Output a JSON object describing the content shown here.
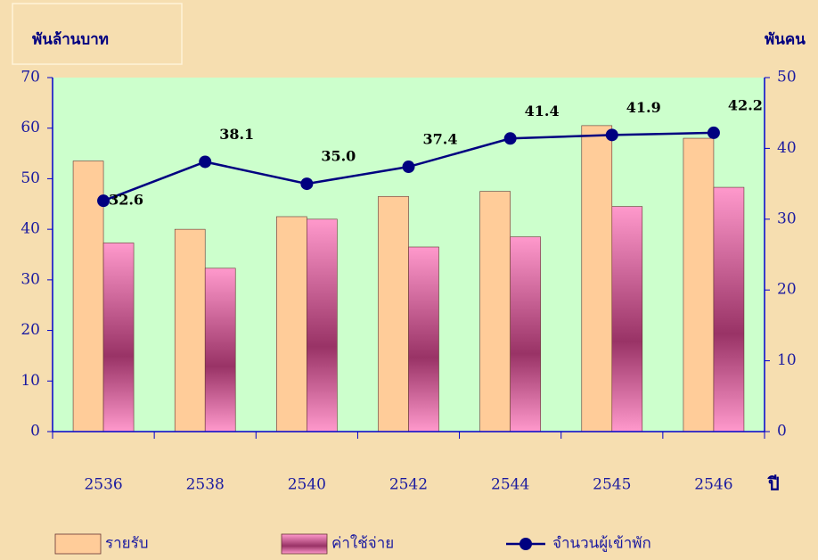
{
  "chart_data": {
    "type": "bar-line",
    "y_label": "พันล้านบาท",
    "y2_label": "พันคน",
    "x_label": "ปี",
    "categories": [
      "2536",
      "2538",
      "2540",
      "2542",
      "2544",
      "2545",
      "2546"
    ],
    "series": [
      {
        "name": "รายรับ",
        "color": "#ffcc99",
        "type": "bar",
        "values": [
          53.5,
          40,
          42.5,
          46.5,
          47.5,
          60.5,
          58
        ]
      },
      {
        "name": "ค่าใช้จ่าย",
        "color": "#ff99cc",
        "type": "bar",
        "values": [
          37.3,
          32.3,
          42,
          36.5,
          38.5,
          44.5,
          48.3
        ]
      },
      {
        "name": "จำนวนผู้เข้าพัก",
        "color": "#000080",
        "type": "line",
        "axis": "y2",
        "values": [
          32.6,
          38.1,
          35.0,
          37.4,
          41.4,
          41.9,
          42.2
        ],
        "value_labels": [
          "32.6",
          "38.1",
          "35.0",
          "37.4",
          "41.4",
          "41.9",
          "42.2"
        ]
      }
    ],
    "ylim": [
      0,
      70
    ],
    "yticks": [
      0,
      10,
      20,
      30,
      40,
      50,
      60,
      70
    ],
    "y2lim": [
      0,
      50
    ],
    "y2ticks": [
      0,
      10,
      20,
      30,
      40,
      50
    ]
  }
}
